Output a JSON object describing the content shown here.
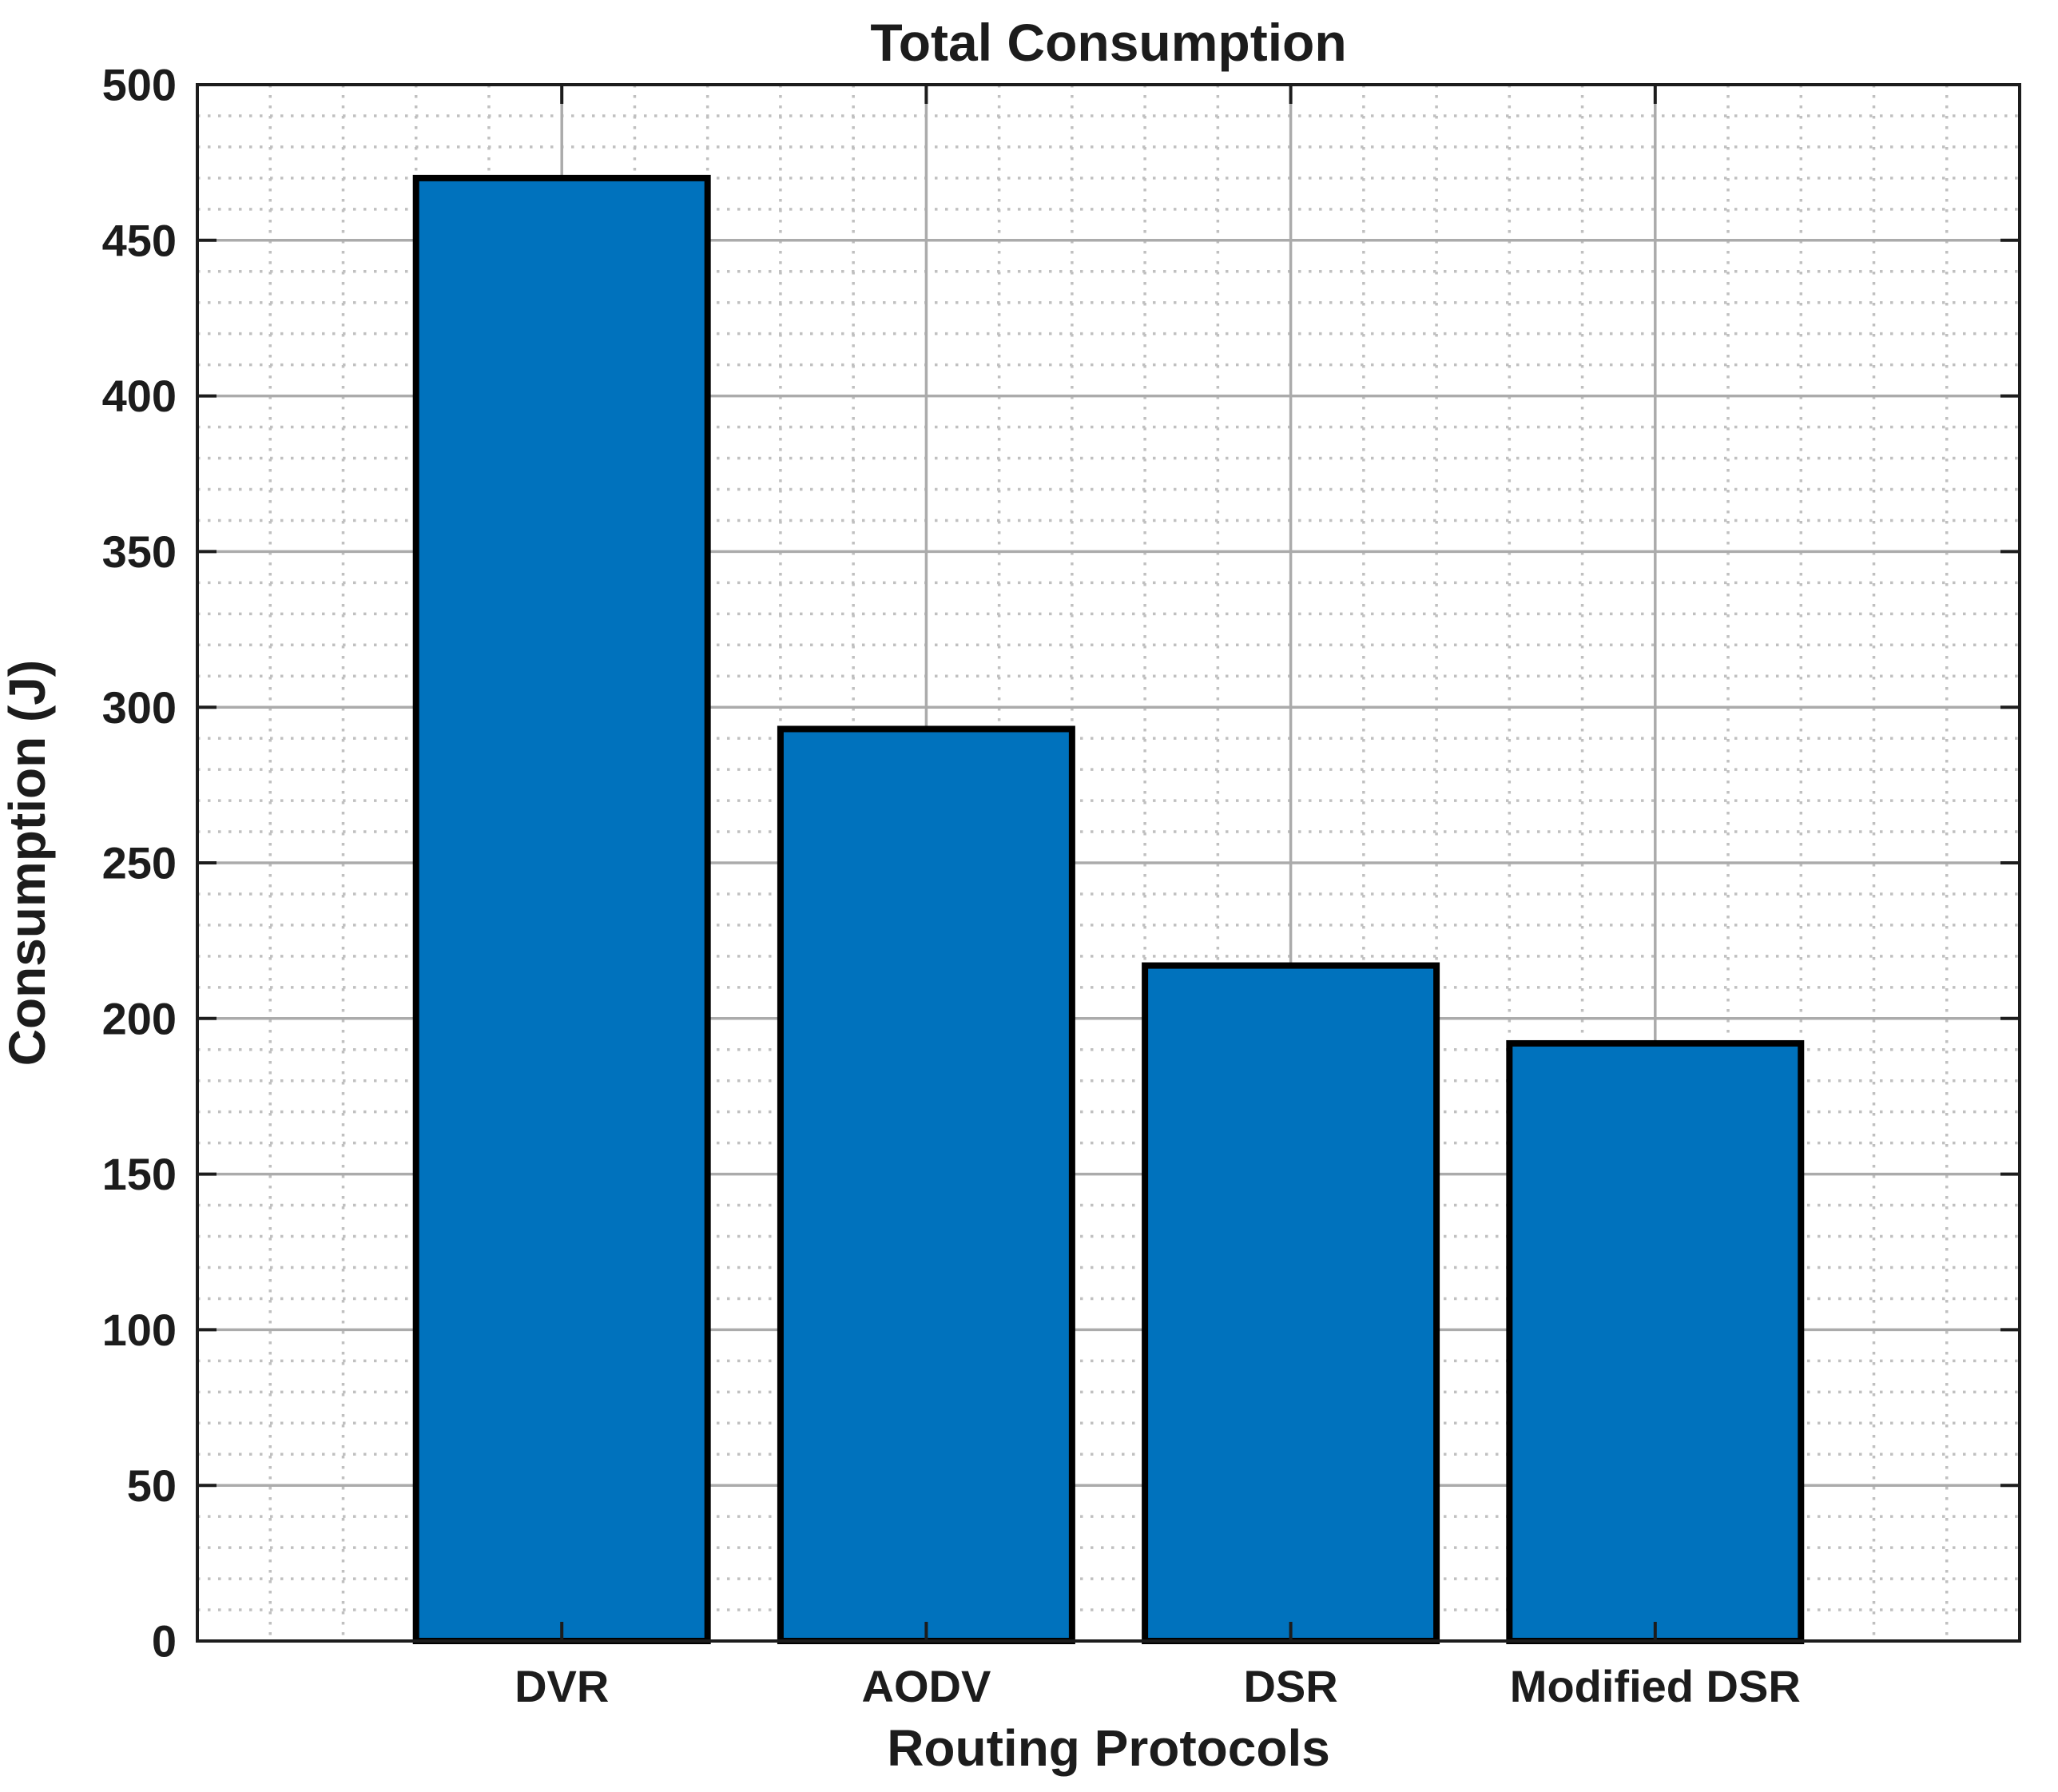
{
  "figure": {
    "background": "#ffffff"
  },
  "chart_data": {
    "type": "bar",
    "title": "Total Consumption",
    "xlabel": "Routing Protocols",
    "ylabel": "Consumption (J)",
    "categories": [
      "DVR",
      "AODV",
      "DSR",
      "Modified DSR"
    ],
    "values": [
      470,
      293,
      217,
      192
    ],
    "ylim": [
      0,
      500
    ],
    "yticks": [
      0,
      50,
      100,
      150,
      200,
      250,
      300,
      350,
      400,
      450,
      500
    ],
    "ytick_step": 50,
    "minor_y_step": 10,
    "minor_x_divisions": 5,
    "bar_width_units": 0.8,
    "grid": {
      "major": "solid",
      "minor": "dotted",
      "x_major_at_bar_centers": true
    },
    "legend": "none",
    "colors": {
      "bar_fill": "#0072BD",
      "bar_edge": "#000000",
      "axis": "#1c1c1c",
      "major_grid": "#ababab",
      "minor_grid": "#c0c0c0",
      "text": "#1c1c1c",
      "background": "#ffffff"
    }
  }
}
